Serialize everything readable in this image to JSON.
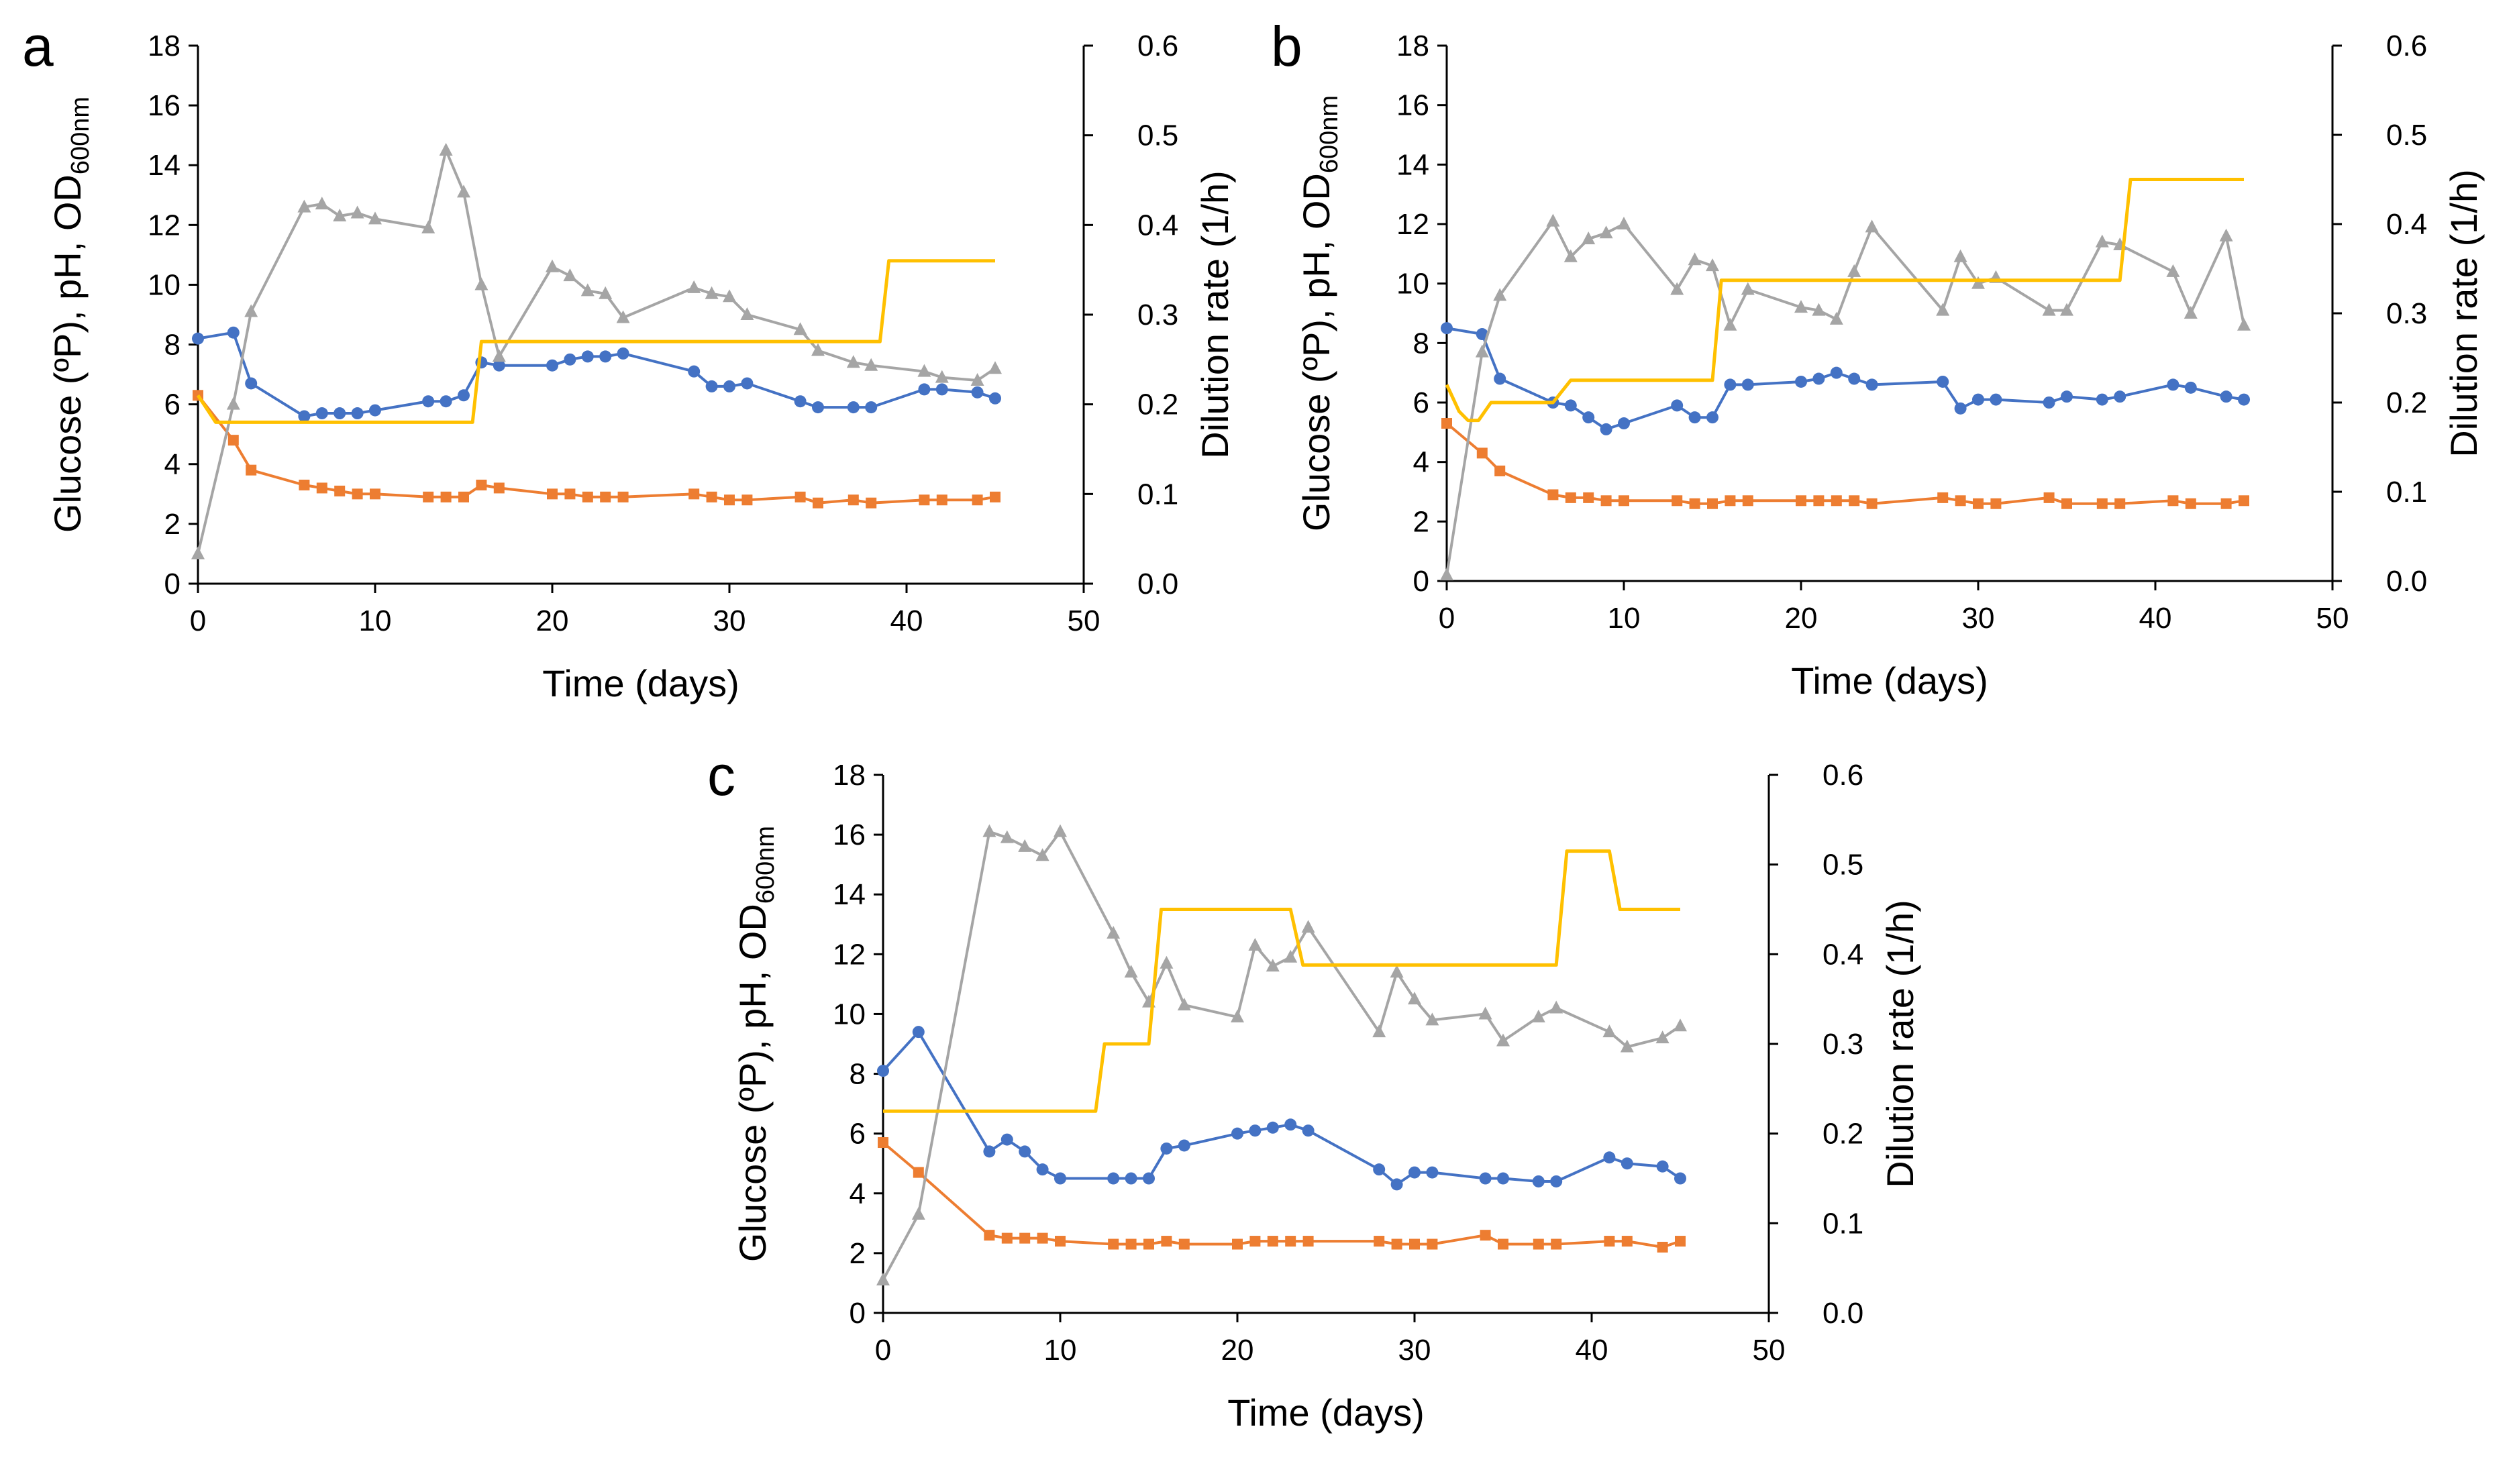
{
  "colors": {
    "glucose": "#ED7D31",
    "ph": "#4472C4",
    "od": "#A5A5A5",
    "dilution": "#FFC000"
  },
  "chart_data": [
    {
      "type": "line",
      "panel_label": "a",
      "xlabel": "Time (days)",
      "ylabel_left": "Glucose (ºP), pH, OD",
      "ylabel_left_subscript": "600nm",
      "ylabel_right": "Dilution rate (1/h)",
      "xlim": [
        0,
        50
      ],
      "xticks": [
        "0",
        "10",
        "20",
        "30",
        "40",
        "50"
      ],
      "ylim_left": [
        0,
        18
      ],
      "yticks_left": [
        "0",
        "2",
        "4",
        "6",
        "8",
        "10",
        "12",
        "14",
        "16",
        "18"
      ],
      "ylim_right": [
        0,
        0.6
      ],
      "yticks_right": [
        "0.0",
        "0.1",
        "0.2",
        "0.3",
        "0.4",
        "0.5",
        "0.6"
      ],
      "grid": false,
      "series": [
        {
          "name": "pH",
          "marker": "circle",
          "color_key": "ph",
          "axis": "left",
          "x": [
            0,
            2,
            3,
            6,
            7,
            8,
            9,
            10,
            13,
            14,
            15,
            16,
            17,
            20,
            21,
            22,
            23,
            24,
            28,
            29,
            30,
            31,
            34,
            35,
            37,
            38,
            41,
            42,
            44,
            45
          ],
          "y": [
            8.2,
            8.4,
            6.7,
            5.6,
            5.7,
            5.7,
            5.7,
            5.8,
            6.1,
            6.1,
            6.3,
            7.4,
            7.3,
            7.3,
            7.5,
            7.6,
            7.6,
            7.7,
            7.1,
            6.6,
            6.6,
            6.7,
            6.1,
            5.9,
            5.9,
            5.9,
            6.5,
            6.5,
            6.4,
            6.2
          ]
        },
        {
          "name": "Glucose",
          "marker": "square",
          "color_key": "glucose",
          "axis": "left",
          "x": [
            0,
            2,
            3,
            6,
            7,
            8,
            9,
            10,
            13,
            14,
            15,
            16,
            17,
            20,
            21,
            22,
            23,
            24,
            28,
            29,
            30,
            31,
            34,
            35,
            37,
            38,
            41,
            42,
            44,
            45
          ],
          "y": [
            6.3,
            4.8,
            3.8,
            3.3,
            3.2,
            3.1,
            3.0,
            3.0,
            2.9,
            2.9,
            2.9,
            3.3,
            3.2,
            3.0,
            3.0,
            2.9,
            2.9,
            2.9,
            3.0,
            2.9,
            2.8,
            2.8,
            2.9,
            2.7,
            2.8,
            2.7,
            2.8,
            2.8,
            2.8,
            2.9
          ]
        },
        {
          "name": "OD600nm",
          "marker": "triangle",
          "color_key": "od",
          "axis": "left",
          "x": [
            0,
            2,
            3,
            6,
            7,
            8,
            9,
            10,
            13,
            14,
            15,
            16,
            17,
            20,
            21,
            22,
            23,
            24,
            28,
            29,
            30,
            31,
            34,
            35,
            37,
            38,
            41,
            42,
            44,
            45
          ],
          "y": [
            1.0,
            6.0,
            9.1,
            12.6,
            12.7,
            12.3,
            12.4,
            12.2,
            11.9,
            14.5,
            13.1,
            10.0,
            7.6,
            10.6,
            10.3,
            9.8,
            9.7,
            8.9,
            9.9,
            9.7,
            9.6,
            9.0,
            8.5,
            7.8,
            7.4,
            7.3,
            7.1,
            6.9,
            6.8,
            7.2
          ]
        },
        {
          "name": "Dilution rate",
          "marker": "none",
          "style": "step",
          "color_key": "dilution",
          "axis": "right",
          "x": [
            0,
            1,
            15.5,
            16,
            38.5,
            39,
            45
          ],
          "y": [
            0.21,
            0.18,
            0.18,
            0.27,
            0.27,
            0.36,
            0.36
          ]
        }
      ]
    },
    {
      "type": "line",
      "panel_label": "b",
      "xlabel": "Time (days)",
      "ylabel_left": "Glucose (ºP), pH, OD",
      "ylabel_left_subscript": "600nm",
      "ylabel_right": "Dilution rate (1/h)",
      "xlim": [
        0,
        50
      ],
      "xticks": [
        "0",
        "10",
        "20",
        "30",
        "40",
        "50"
      ],
      "ylim_left": [
        0,
        18
      ],
      "yticks_left": [
        "0",
        "2",
        "4",
        "6",
        "8",
        "10",
        "12",
        "14",
        "16",
        "18"
      ],
      "ylim_right": [
        0,
        0.6
      ],
      "yticks_right": [
        "0.0",
        "0.1",
        "0.2",
        "0.3",
        "0.4",
        "0.5",
        "0.6"
      ],
      "grid": false,
      "series": [
        {
          "name": "pH",
          "marker": "circle",
          "color_key": "ph",
          "axis": "left",
          "x": [
            0,
            2,
            3,
            6,
            7,
            8,
            9,
            10,
            13,
            14,
            15,
            16,
            17,
            20,
            21,
            22,
            23,
            24,
            28,
            29,
            30,
            31,
            34,
            35,
            37,
            38,
            41,
            42,
            44,
            45
          ],
          "y": [
            8.5,
            8.3,
            6.8,
            6.0,
            5.9,
            5.5,
            5.1,
            5.3,
            5.9,
            5.5,
            5.5,
            6.6,
            6.6,
            6.7,
            6.8,
            7.0,
            6.8,
            6.6,
            6.7,
            5.8,
            6.1,
            6.1,
            6.0,
            6.2,
            6.1,
            6.2,
            6.6,
            6.5,
            6.2,
            6.1
          ]
        },
        {
          "name": "Glucose",
          "marker": "square",
          "color_key": "glucose",
          "axis": "left",
          "x": [
            0,
            2,
            3,
            6,
            7,
            8,
            9,
            10,
            13,
            14,
            15,
            16,
            17,
            20,
            21,
            22,
            23,
            24,
            28,
            29,
            30,
            31,
            34,
            35,
            37,
            38,
            41,
            42,
            44,
            45
          ],
          "y": [
            5.3,
            4.3,
            3.7,
            2.9,
            2.8,
            2.8,
            2.7,
            2.7,
            2.7,
            2.6,
            2.6,
            2.7,
            2.7,
            2.7,
            2.7,
            2.7,
            2.7,
            2.6,
            2.8,
            2.7,
            2.6,
            2.6,
            2.8,
            2.6,
            2.6,
            2.6,
            2.7,
            2.6,
            2.6,
            2.7
          ]
        },
        {
          "name": "OD600nm",
          "marker": "triangle",
          "color_key": "od",
          "axis": "left",
          "x": [
            0,
            2,
            3,
            6,
            7,
            8,
            9,
            10,
            13,
            14,
            15,
            16,
            17,
            20,
            21,
            22,
            23,
            24,
            28,
            29,
            30,
            31,
            34,
            35,
            37,
            38,
            41,
            42,
            44,
            45
          ],
          "y": [
            0.2,
            7.7,
            9.6,
            12.1,
            10.9,
            11.5,
            11.7,
            12.0,
            9.8,
            10.8,
            10.6,
            8.6,
            9.8,
            9.2,
            9.1,
            8.8,
            10.4,
            11.9,
            9.1,
            10.9,
            10.0,
            10.2,
            9.1,
            9.1,
            11.4,
            11.3,
            10.4,
            9.0,
            11.6,
            8.6
          ]
        },
        {
          "name": "Dilution rate",
          "marker": "none",
          "style": "step",
          "color_key": "dilution",
          "axis": "right",
          "x": [
            0,
            0.7,
            1.2,
            1.8,
            2.5,
            6,
            7,
            15,
            15.5,
            38,
            38.6,
            45
          ],
          "y": [
            0.22,
            0.19,
            0.18,
            0.18,
            0.2,
            0.2,
            0.225,
            0.225,
            0.337,
            0.337,
            0.45,
            0.45
          ]
        }
      ]
    },
    {
      "type": "line",
      "panel_label": "c",
      "xlabel": "Time (days)",
      "ylabel_left": "Glucose (ºP), pH, OD",
      "ylabel_left_subscript": "600nm",
      "ylabel_right": "Dilution rate (1/h)",
      "xlim": [
        0,
        50
      ],
      "xticks": [
        "0",
        "10",
        "20",
        "30",
        "40",
        "50"
      ],
      "ylim_left": [
        0,
        18
      ],
      "yticks_left": [
        "0",
        "2",
        "4",
        "6",
        "8",
        "10",
        "12",
        "14",
        "16",
        "18"
      ],
      "ylim_right": [
        0,
        0.6
      ],
      "yticks_right": [
        "0.0",
        "0.1",
        "0.2",
        "0.3",
        "0.4",
        "0.5",
        "0.6"
      ],
      "grid": false,
      "series": [
        {
          "name": "pH",
          "marker": "circle",
          "color_key": "ph",
          "axis": "left",
          "x": [
            0,
            2,
            6,
            7,
            8,
            9,
            10,
            13,
            14,
            15,
            16,
            17,
            20,
            21,
            22,
            23,
            24,
            28,
            29,
            30,
            31,
            34,
            35,
            37,
            38,
            41,
            42,
            44,
            45
          ],
          "y": [
            8.1,
            9.4,
            5.4,
            5.8,
            5.4,
            4.8,
            4.5,
            4.5,
            4.5,
            4.5,
            5.5,
            5.6,
            6.0,
            6.1,
            6.2,
            6.3,
            6.1,
            4.8,
            4.3,
            4.7,
            4.7,
            4.5,
            4.5,
            4.4,
            4.4,
            5.2,
            5.0,
            4.9,
            4.5
          ]
        },
        {
          "name": "Glucose",
          "marker": "square",
          "color_key": "glucose",
          "axis": "left",
          "x": [
            0,
            2,
            6,
            7,
            8,
            9,
            10,
            13,
            14,
            15,
            16,
            17,
            20,
            21,
            22,
            23,
            24,
            28,
            29,
            30,
            31,
            34,
            35,
            37,
            38,
            41,
            42,
            44,
            45
          ],
          "y": [
            5.7,
            4.7,
            2.6,
            2.5,
            2.5,
            2.5,
            2.4,
            2.3,
            2.3,
            2.3,
            2.4,
            2.3,
            2.3,
            2.4,
            2.4,
            2.4,
            2.4,
            2.4,
            2.3,
            2.3,
            2.3,
            2.6,
            2.3,
            2.3,
            2.3,
            2.4,
            2.4,
            2.2,
            2.4
          ]
        },
        {
          "name": "OD600nm",
          "marker": "triangle",
          "color_key": "od",
          "axis": "left",
          "x": [
            0,
            2,
            6,
            7,
            8,
            9,
            10,
            13,
            14,
            15,
            16,
            17,
            20,
            21,
            22,
            23,
            24,
            28,
            29,
            30,
            31,
            34,
            35,
            37,
            38,
            41,
            42,
            44,
            45
          ],
          "y": [
            1.1,
            3.3,
            16.1,
            15.9,
            15.6,
            15.3,
            16.1,
            12.7,
            11.4,
            10.4,
            11.7,
            10.3,
            9.9,
            12.3,
            11.6,
            11.9,
            12.9,
            9.4,
            11.4,
            10.5,
            9.8,
            10.0,
            9.1,
            9.9,
            10.2,
            9.4,
            8.9,
            9.2,
            9.6
          ]
        },
        {
          "name": "Dilution rate",
          "marker": "none",
          "style": "step",
          "color_key": "dilution",
          "axis": "right",
          "x": [
            0,
            12,
            12.5,
            14,
            15,
            15.7,
            23,
            23.7,
            38,
            38.6,
            41,
            41.6,
            45
          ],
          "y": [
            0.225,
            0.225,
            0.3,
            0.3,
            0.3,
            0.45,
            0.45,
            0.388,
            0.388,
            0.515,
            0.515,
            0.45,
            0.45
          ]
        }
      ]
    }
  ]
}
